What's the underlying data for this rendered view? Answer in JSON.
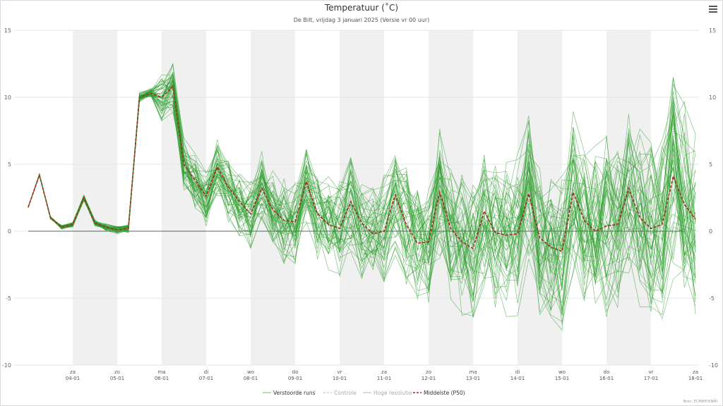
{
  "header": {
    "title": "Temperatuur (˚C)",
    "subtitle": "De Bilt, vrijdag 3 januari 2025 (Versie vr 00 uur)",
    "menu_icon": "hamburger-menu-icon"
  },
  "credit": "Bron: ECMWF/KNMI",
  "legend": [
    {
      "label": "Verstoorde runs",
      "color": "#6fbf6f",
      "style": "solid",
      "active": true
    },
    {
      "label": "Controle",
      "color": "#bbbbbb",
      "style": "dashed",
      "active": false
    },
    {
      "label": "Hoge resolutie",
      "color": "#bbbbbb",
      "style": "solid",
      "active": false
    },
    {
      "label": "Middelste (P50)",
      "color": "#a52a2a",
      "style": "dashed",
      "active": true
    }
  ],
  "chart_data": {
    "type": "line",
    "title": "Temperatuur (˚C)",
    "subtitle": "De Bilt, vrijdag 3 januari 2025 (Versie vr 00 uur)",
    "xlabel": "",
    "ylabel": "",
    "ylim": [
      -10,
      15
    ],
    "yticks": [
      -10,
      -5,
      0,
      5,
      10,
      15
    ],
    "x_range_days": [
      0,
      15
    ],
    "x_ticks": [
      {
        "day": 1,
        "line1": "za",
        "line2": "04-01"
      },
      {
        "day": 2,
        "line1": "zo",
        "line2": "05-01"
      },
      {
        "day": 3,
        "line1": "ma",
        "line2": "06-01"
      },
      {
        "day": 4,
        "line1": "di",
        "line2": "07-01"
      },
      {
        "day": 5,
        "line1": "wo",
        "line2": "08-01"
      },
      {
        "day": 6,
        "line1": "do",
        "line2": "09-01"
      },
      {
        "day": 7,
        "line1": "vr",
        "line2": "10-01"
      },
      {
        "day": 8,
        "line1": "za",
        "line2": "11-01"
      },
      {
        "day": 9,
        "line1": "zo",
        "line2": "12-01"
      },
      {
        "day": 10,
        "line1": "ma",
        "line2": "13-01"
      },
      {
        "day": 11,
        "line1": "di",
        "line2": "14-01"
      },
      {
        "day": 12,
        "line1": "wo",
        "line2": "15-01"
      },
      {
        "day": 13,
        "line1": "do",
        "line2": "16-01"
      },
      {
        "day": 14,
        "line1": "vr",
        "line2": "17-01"
      },
      {
        "day": 15,
        "line1": "za",
        "line2": "18-01"
      }
    ],
    "shaded_days": [
      1,
      3,
      5,
      7,
      9,
      11,
      13
    ],
    "grid": true,
    "legend_position": "bottom",
    "median_series": {
      "name": "Middelste (P50)",
      "x": [
        0,
        0.25,
        0.5,
        0.75,
        1,
        1.25,
        1.5,
        1.75,
        2,
        2.25,
        2.5,
        2.75,
        3,
        3.25,
        3.5,
        3.75,
        4,
        4.25,
        4.5,
        4.75,
        5,
        5.25,
        5.5,
        5.75,
        6,
        6.25,
        6.5,
        6.75,
        7,
        7.25,
        7.5,
        7.75,
        8,
        8.25,
        8.5,
        8.75,
        9,
        9.25,
        9.5,
        9.75,
        10,
        10.25,
        10.5,
        10.75,
        11,
        11.25,
        11.5,
        11.75,
        12,
        12.25,
        12.5,
        12.75,
        13,
        13.25,
        13.5,
        13.75,
        14,
        14.25,
        14.5,
        14.75,
        15
      ],
      "values": [
        1.8,
        4.2,
        1.0,
        0.3,
        0.5,
        2.5,
        0.6,
        0.3,
        0.1,
        0.2,
        10.0,
        10.3,
        10.0,
        10.8,
        5.0,
        3.8,
        2.6,
        4.8,
        3.3,
        2.2,
        1.3,
        3.2,
        1.6,
        0.8,
        0.7,
        3.7,
        1.3,
        0.5,
        0.2,
        2.2,
        0.6,
        -0.2,
        0.0,
        2.7,
        0.5,
        -0.9,
        -0.8,
        2.9,
        0.2,
        -0.8,
        -1.3,
        1.5,
        -0.1,
        -0.3,
        -0.2,
        2.8,
        -0.5,
        -1.2,
        -1.5,
        2.9,
        0.8,
        0.0,
        0.4,
        0.5,
        3.2,
        1.0,
        0.2,
        0.5,
        4.1,
        2.0,
        0.9
      ]
    },
    "ensemble": {
      "name": "Verstoorde runs",
      "member_count": 50,
      "color": "#2e9e2e"
    }
  }
}
